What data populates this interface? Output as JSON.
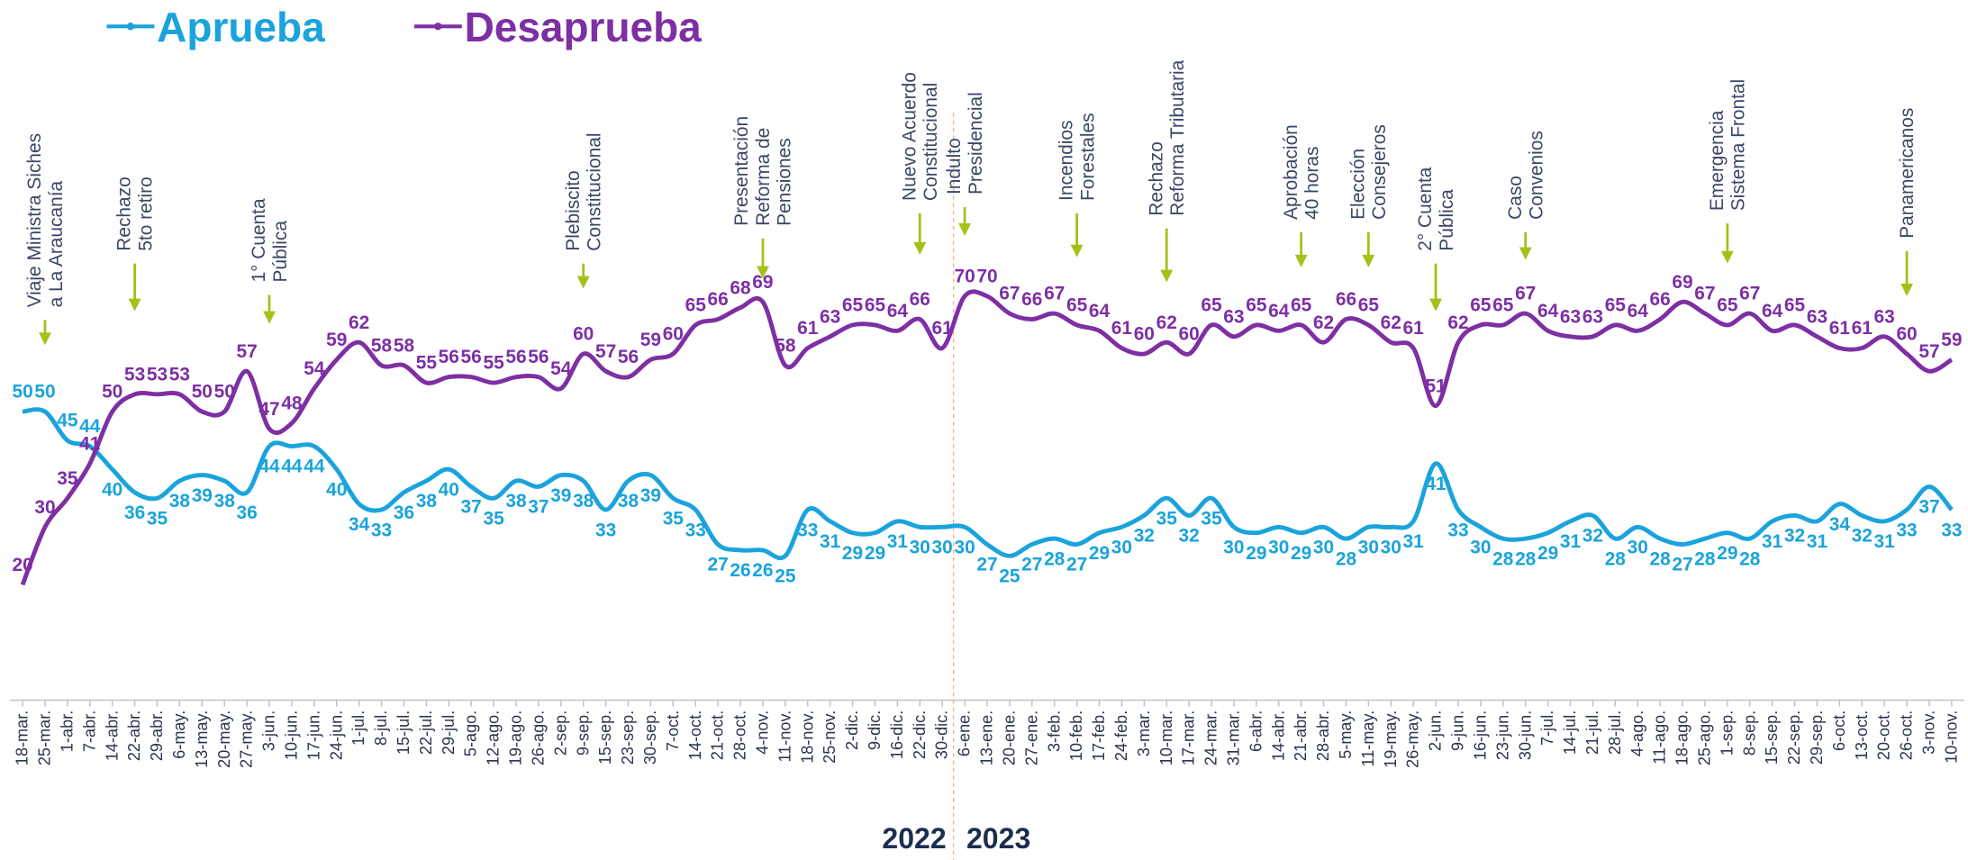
{
  "chart_data": {
    "type": "line",
    "categories": [
      "18-mar.",
      "25-mar.",
      "1-abr.",
      "7-abr.",
      "14-abr.",
      "22-abr.",
      "29-abr.",
      "6-may.",
      "13-may.",
      "20-may.",
      "27-may.",
      "3-jun.",
      "10-jun.",
      "17-jun.",
      "24-jun.",
      "1-jul.",
      "8-jul.",
      "15-jul.",
      "22-jul.",
      "29-jul.",
      "5-ago.",
      "12-ago.",
      "19-ago.",
      "26-ago.",
      "2-sep.",
      "9-sep.",
      "15-sep.",
      "23-sep.",
      "30-sep.",
      "7-oct.",
      "14-oct.",
      "21-oct.",
      "28-oct.",
      "4-nov.",
      "11-nov.",
      "18-nov.",
      "25-nov.",
      "2-dic.",
      "9-dic.",
      "16-dic.",
      "22-dic.",
      "30-dic.",
      "6-ene.",
      "13-ene.",
      "20-ene.",
      "27-ene.",
      "3-feb.",
      "10-feb.",
      "17-feb.",
      "24-feb.",
      "3-mar.",
      "10-mar.",
      "17-mar.",
      "24-mar.",
      "31-mar.",
      "6-abr.",
      "14-abr.",
      "21-abr.",
      "28-abr.",
      "5-may.",
      "11-may.",
      "19-may.",
      "26-may.",
      "2-jun.",
      "9-jun.",
      "16-jun.",
      "23-jun.",
      "30-jun.",
      "7-jul.",
      "14-jul.",
      "21-jul.",
      "28-jul.",
      "4-ago.",
      "11-ago.",
      "18-ago.",
      "25-ago.",
      "1-sep.",
      "8-sep.",
      "15-sep.",
      "22-sep.",
      "29-sep.",
      "6-oct.",
      "13-oct.",
      "20-oct.",
      "26-oct.",
      "3-nov.",
      "10-nov."
    ],
    "series": [
      {
        "name": "Aprueba",
        "color": "#1aa3dc",
        "values": [
          50,
          50,
          45,
          44,
          40,
          36,
          35,
          38,
          39,
          38,
          36,
          44,
          44,
          44,
          40,
          34,
          33,
          36,
          38,
          40,
          37,
          35,
          38,
          37,
          39,
          38,
          33,
          38,
          39,
          35,
          33,
          27,
          26,
          26,
          25,
          33,
          31,
          29,
          29,
          31,
          30,
          30,
          30,
          27,
          25,
          27,
          28,
          27,
          29,
          30,
          32,
          35,
          32,
          35,
          30,
          29,
          30,
          29,
          30,
          28,
          30,
          30,
          31,
          41,
          33,
          30,
          28,
          28,
          29,
          31,
          32,
          28,
          30,
          28,
          27,
          28,
          29,
          28,
          31,
          32,
          31,
          34,
          32,
          31,
          33,
          37,
          33
        ]
      },
      {
        "name": "Desaprueba",
        "color": "#7d2fa3",
        "values": [
          20,
          30,
          35,
          41,
          50,
          53,
          53,
          53,
          50,
          50,
          57,
          47,
          48,
          54,
          59,
          62,
          58,
          58,
          55,
          56,
          56,
          55,
          56,
          56,
          54,
          60,
          57,
          56,
          59,
          60,
          65,
          66,
          68,
          69,
          58,
          61,
          63,
          65,
          65,
          64,
          66,
          61,
          70,
          70,
          67,
          66,
          67,
          65,
          64,
          61,
          60,
          62,
          60,
          65,
          63,
          65,
          64,
          65,
          62,
          66,
          65,
          62,
          61,
          51,
          62,
          65,
          65,
          67,
          64,
          63,
          63,
          65,
          64,
          66,
          69,
          67,
          65,
          67,
          64,
          65,
          63,
          61,
          61,
          63,
          60,
          57,
          59
        ]
      }
    ],
    "ylim": [
      0,
      100
    ],
    "annotations": [
      {
        "at": "25-mar.",
        "text": [
          "Viaje Ministra Siches",
          "a La Araucanía"
        ]
      },
      {
        "at": "22-abr.",
        "text": [
          "Rechazo",
          "5to retiro"
        ]
      },
      {
        "at": "3-jun.",
        "text": [
          "1° Cuenta",
          "Pública"
        ]
      },
      {
        "at": "9-sep.",
        "text": [
          "Plebiscito",
          "Constitucional"
        ]
      },
      {
        "at": "4-nov.",
        "text": [
          "Presentación",
          "Reforma de",
          "Pensiones"
        ]
      },
      {
        "at": "22-dic.",
        "text": [
          "Nuevo Acuerdo",
          "Constitucional"
        ]
      },
      {
        "at": "6-ene.",
        "text": [
          "Indulto",
          "Presidencial"
        ]
      },
      {
        "at": "10-feb.",
        "text": [
          "Incendios",
          "Forestales"
        ]
      },
      {
        "at": "10-mar.",
        "text": [
          "Rechazo",
          "Reforma Tributaria"
        ]
      },
      {
        "at": "21-abr.",
        "text": [
          "Aprobación",
          "40 horas"
        ]
      },
      {
        "at": "11-may.",
        "text": [
          "Elección",
          "Consejeros"
        ]
      },
      {
        "at": "2-jun.",
        "text": [
          "2° Cuenta",
          "Pública"
        ]
      },
      {
        "at": "30-jun.",
        "text": [
          "Caso",
          "Convenios"
        ]
      },
      {
        "at": "1-sep.",
        "text": [
          "Emergencia",
          "Sistema Frontal"
        ]
      },
      {
        "at": "26-oct.",
        "text": [
          "Panamericanos"
        ]
      }
    ],
    "years": [
      "2022",
      "2023"
    ]
  }
}
